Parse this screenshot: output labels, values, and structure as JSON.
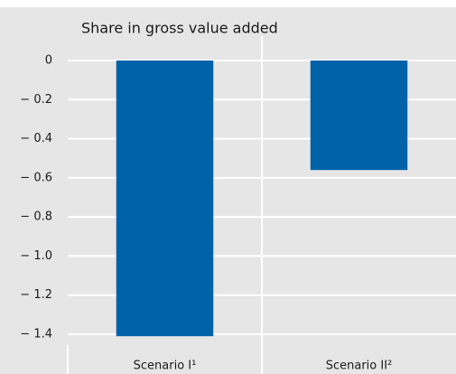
{
  "chart_data": {
    "type": "bar",
    "title": "Share in gross value added",
    "categories": [
      "Scenario I¹",
      "Scenario II²"
    ],
    "values": [
      -1.41,
      -0.56
    ],
    "color": "#0062a8",
    "ylim": [
      -1.4,
      0
    ],
    "yticks": [
      0,
      {
        "value": -0.2,
        "label": "− 0.2"
      },
      {
        "value": -0.4,
        "label": "− 0.4"
      },
      {
        "value": -0.6,
        "label": "− 0.6"
      },
      {
        "value": -0.8,
        "label": "− 0.8"
      },
      {
        "value": -1.0,
        "label": "− 1.0"
      },
      {
        "value": -1.2,
        "label": "− 1.2"
      },
      {
        "value": -1.4,
        "label": "− 1.4"
      }
    ],
    "grid": true
  }
}
